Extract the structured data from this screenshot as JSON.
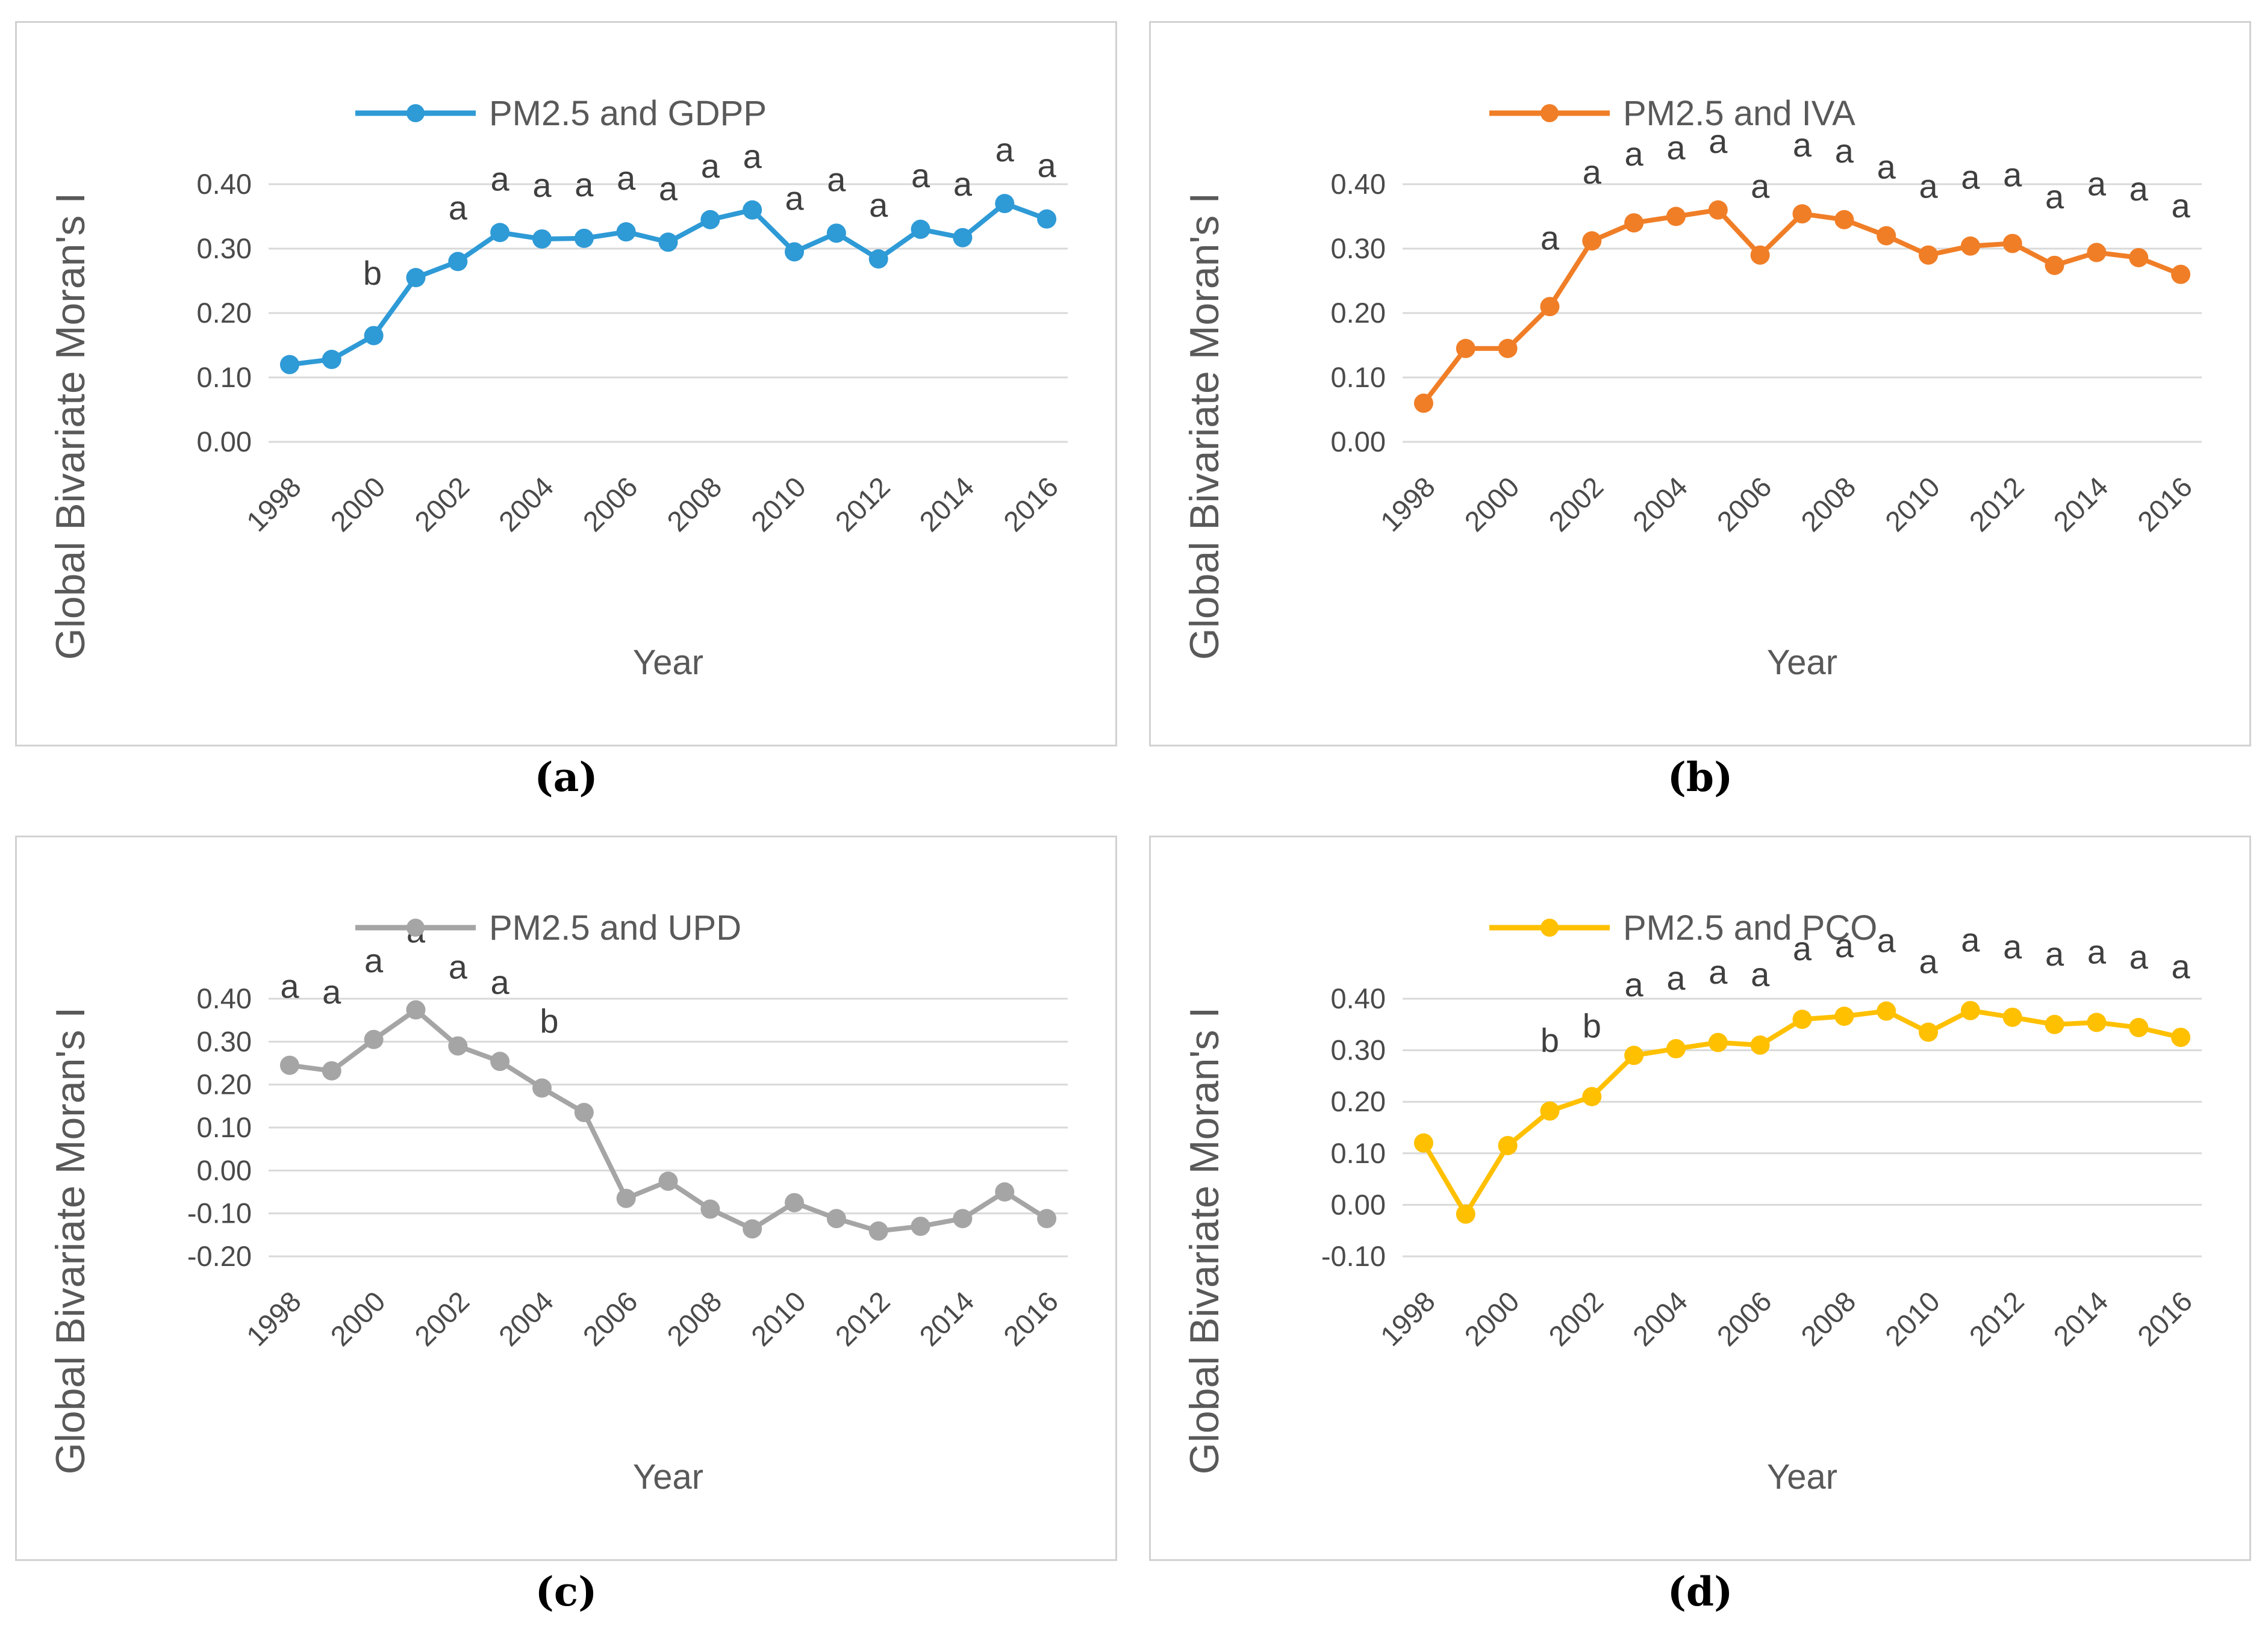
{
  "figure": {
    "ylabel": "Global Bivariate Moran's I",
    "xlabel": "Year",
    "colors": {
      "background": "#ffffff",
      "grid": "#d9d9d9",
      "box_border": "#d2d2d2",
      "tick_text": "#4a4a4a",
      "axis_title_text": "#595959",
      "legend_text": "#595959",
      "annotation_text": "#3f3f3f",
      "caption_text": "#000000",
      "series_blue": "#2e9ad6",
      "series_orange": "#f07e27",
      "series_gray": "#a5a5a5",
      "series_yellow": "#ffc000"
    }
  },
  "chart_data": [
    {
      "id": "a",
      "type": "line",
      "caption": "(a)",
      "legend": "PM2.5 and GDPP",
      "color": "#2e9ad6",
      "title": "",
      "xlabel": "Year",
      "ylabel": "Global Bivariate Moran's I",
      "legend_position": "top",
      "grid": true,
      "x": [
        1998,
        1999,
        2000,
        2001,
        2002,
        2003,
        2004,
        2005,
        2006,
        2007,
        2008,
        2009,
        2010,
        2011,
        2012,
        2013,
        2014,
        2015,
        2016
      ],
      "x_tick_labels": [
        "1998",
        "2000",
        "2002",
        "2004",
        "2006",
        "2008",
        "2010",
        "2012",
        "2014",
        "2016"
      ],
      "y_ticks": [
        0.4,
        0.3,
        0.2,
        0.1,
        0.0
      ],
      "y_tick_labels": [
        "0.40",
        "0.30",
        "0.20",
        "0.10",
        "0.00"
      ],
      "ylim": [
        0.0,
        0.46
      ],
      "values": [
        0.12,
        0.128,
        0.165,
        0.255,
        0.28,
        0.325,
        0.315,
        0.316,
        0.326,
        0.31,
        0.345,
        0.36,
        0.295,
        0.324,
        0.284,
        0.33,
        0.317,
        0.37,
        0.346
      ],
      "point_labels": [
        "",
        "",
        "",
        "b",
        "a",
        "a",
        "a",
        "a",
        "a",
        "a",
        "a",
        "a",
        "a",
        "a",
        "a",
        "a",
        "a",
        "a",
        "a"
      ],
      "default_label_offset": [
        0,
        -70
      ],
      "label_offsets": {
        "3": [
          -72,
          12
        ]
      }
    },
    {
      "id": "b",
      "type": "line",
      "caption": "(b)",
      "legend": "PM2.5 and IVA",
      "color": "#f07e27",
      "title": "",
      "xlabel": "Year",
      "ylabel": "Global Bivariate Moran's I",
      "legend_position": "top",
      "grid": true,
      "x": [
        1998,
        1999,
        2000,
        2001,
        2002,
        2003,
        2004,
        2005,
        2006,
        2007,
        2008,
        2009,
        2010,
        2011,
        2012,
        2013,
        2014,
        2015,
        2016
      ],
      "x_tick_labels": [
        "1998",
        "2000",
        "2002",
        "2004",
        "2006",
        "2008",
        "2010",
        "2012",
        "2014",
        "2016"
      ],
      "y_ticks": [
        0.4,
        0.3,
        0.2,
        0.1,
        0.0
      ],
      "y_tick_labels": [
        "0.40",
        "0.30",
        "0.20",
        "0.10",
        "0.00"
      ],
      "ylim": [
        0.0,
        0.46
      ],
      "values": [
        0.06,
        0.145,
        0.145,
        0.21,
        0.312,
        0.34,
        0.35,
        0.36,
        0.29,
        0.354,
        0.345,
        0.32,
        0.29,
        0.304,
        0.308,
        0.274,
        0.294,
        0.286,
        0.26
      ],
      "point_labels": [
        "",
        "",
        "",
        "a",
        "a",
        "a",
        "a",
        "a",
        "a",
        "a",
        "a",
        "a",
        "a",
        "a",
        "a",
        "a",
        "a",
        "a",
        "a"
      ],
      "default_label_offset": [
        0,
        -95
      ],
      "label_offsets": {}
    },
    {
      "id": "c",
      "type": "line",
      "caption": "(c)",
      "legend": "PM2.5 and UPD",
      "color": "#a5a5a5",
      "title": "",
      "xlabel": "Year",
      "ylabel": "Global Bivariate Moran's I",
      "legend_position": "top",
      "grid": true,
      "x": [
        1998,
        1999,
        2000,
        2001,
        2002,
        2003,
        2004,
        2005,
        2006,
        2007,
        2008,
        2009,
        2010,
        2011,
        2012,
        2013,
        2014,
        2015,
        2016
      ],
      "x_tick_labels": [
        "1998",
        "2000",
        "2002",
        "2004",
        "2006",
        "2008",
        "2010",
        "2012",
        "2014",
        "2016"
      ],
      "y_ticks": [
        0.4,
        0.3,
        0.2,
        0.1,
        0.0,
        -0.1,
        -0.2
      ],
      "y_tick_labels": [
        "0.40",
        "0.30",
        "0.20",
        "0.10",
        "0.00",
        "-0.10",
        "-0.20"
      ],
      "ylim": [
        -0.2,
        0.49
      ],
      "values": [
        0.245,
        0.232,
        0.305,
        0.374,
        0.29,
        0.254,
        0.192,
        0.135,
        -0.065,
        -0.025,
        -0.09,
        -0.136,
        -0.075,
        -0.112,
        -0.141,
        -0.13,
        -0.112,
        -0.05,
        -0.112
      ],
      "point_labels": [
        "a",
        "a",
        "a",
        "a",
        "a",
        "a",
        "b",
        "",
        "",
        "",
        "",
        "",
        "",
        "",
        "",
        "",
        "",
        "",
        ""
      ],
      "default_label_offset": [
        0,
        -112
      ],
      "label_offsets": {
        "6": [
          12,
          -92
        ]
      }
    },
    {
      "id": "d",
      "type": "line",
      "caption": "(d)",
      "legend": "PM2.5 and PCO",
      "color": "#ffc000",
      "title": "",
      "xlabel": "Year",
      "ylabel": "Global Bivariate Moran's I",
      "legend_position": "top",
      "grid": true,
      "x": [
        1998,
        1999,
        2000,
        2001,
        2002,
        2003,
        2004,
        2005,
        2006,
        2007,
        2008,
        2009,
        2010,
        2011,
        2012,
        2013,
        2014,
        2015,
        2016
      ],
      "x_tick_labels": [
        "1998",
        "2000",
        "2002",
        "2004",
        "2006",
        "2008",
        "2010",
        "2012",
        "2014",
        "2016"
      ],
      "y_ticks": [
        0.4,
        0.3,
        0.2,
        0.1,
        0.0,
        -0.1
      ],
      "y_tick_labels": [
        "0.40",
        "0.30",
        "0.20",
        "0.10",
        "0.00",
        "-0.10"
      ],
      "ylim": [
        -0.1,
        0.48
      ],
      "values": [
        0.12,
        -0.018,
        0.115,
        0.182,
        0.21,
        0.29,
        0.303,
        0.315,
        0.31,
        0.36,
        0.366,
        0.376,
        0.335,
        0.377,
        0.364,
        0.35,
        0.354,
        0.344,
        0.325
      ],
      "point_labels": [
        "",
        "",
        "",
        "b",
        "b",
        "a",
        "a",
        "a",
        "a",
        "a",
        "a",
        "a",
        "a",
        "a",
        "a",
        "a",
        "a",
        "a",
        "a"
      ],
      "default_label_offset": [
        0,
        -98
      ],
      "label_offsets": {}
    }
  ]
}
